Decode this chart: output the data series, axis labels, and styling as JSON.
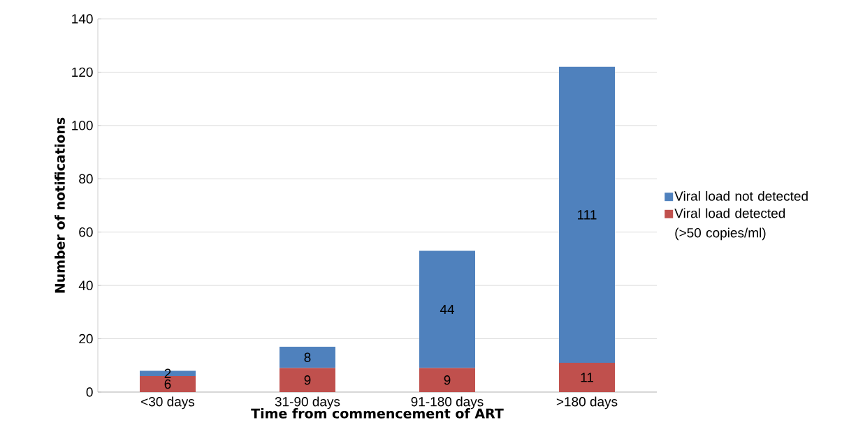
{
  "chart_data": {
    "type": "bar",
    "stacked": true,
    "xlabel": "Time from commencement of ART",
    "ylabel": "Number of notifications",
    "categories": [
      "<30 days",
      "31-90 days",
      "91-180 days",
      ">180 days"
    ],
    "series": [
      {
        "name": "Viral load detected (>50 copies/ml)",
        "color": "#c0504d",
        "values": [
          6,
          9,
          9,
          11
        ]
      },
      {
        "name": "Viral load not detected",
        "color": "#4f81bd",
        "values": [
          2,
          8,
          44,
          111
        ]
      }
    ],
    "ylim": [
      0,
      140
    ],
    "yticks": [
      0,
      20,
      40,
      60,
      80,
      100,
      120,
      140
    ],
    "grid": "y",
    "legend": "right",
    "data_labels": true
  }
}
